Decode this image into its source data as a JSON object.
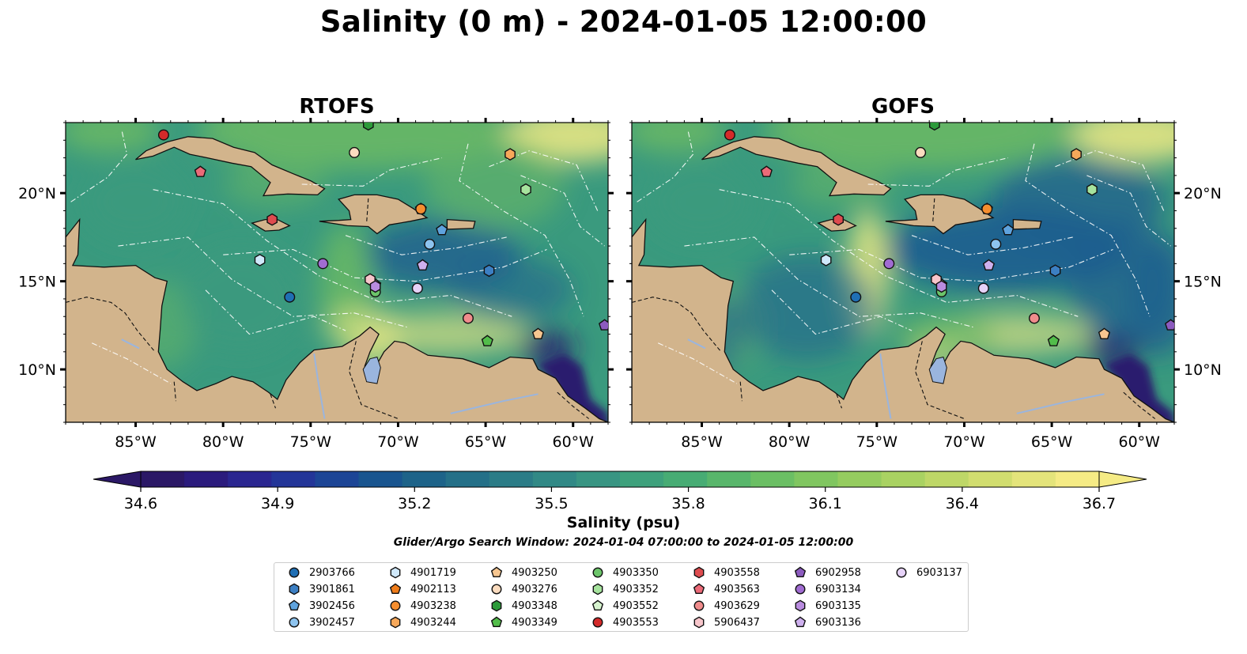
{
  "title": "Salinity (0 m) - 2024-01-05 12:00:00",
  "panels": [
    {
      "key": "rtofs",
      "title": "RTOFS"
    },
    {
      "key": "gofs",
      "title": "GOFS"
    }
  ],
  "map": {
    "lon_range": [
      -89,
      -58
    ],
    "lat_range": [
      7,
      24
    ],
    "lon_ticks": [
      {
        "v": -85,
        "label": "85°W"
      },
      {
        "v": -80,
        "label": "80°W"
      },
      {
        "v": -75,
        "label": "75°W"
      },
      {
        "v": -70,
        "label": "70°W"
      },
      {
        "v": -65,
        "label": "65°W"
      },
      {
        "v": -60,
        "label": "60°W"
      }
    ],
    "lat_ticks": [
      {
        "v": 20,
        "label": "20°N"
      },
      {
        "v": 15,
        "label": "15°N"
      },
      {
        "v": 10,
        "label": "10°N"
      }
    ],
    "land_color": "#d2b48c",
    "colors": {
      "deep": "#2a1b6e",
      "low": "#1f5f8f",
      "mid": "#3a9a7e",
      "high": "#6ab865",
      "top": "#dfe383"
    }
  },
  "colorbar": {
    "label": "Salinity (psu)",
    "min": 34.6,
    "max": 36.7,
    "step": 0.1,
    "ticks": [
      "34.6",
      "34.9",
      "35.2",
      "35.5",
      "35.8",
      "36.1",
      "36.4",
      "36.7"
    ],
    "extend": "both",
    "colormap": [
      "#2b1866",
      "#2b1b7d",
      "#2a2690",
      "#233598",
      "#1c4596",
      "#19558f",
      "#1d6389",
      "#247088",
      "#2b7c87",
      "#318986",
      "#389583",
      "#3ea17c",
      "#47ac74",
      "#58b66b",
      "#6bbf64",
      "#80c660",
      "#95cc5f",
      "#a9d262",
      "#bed767",
      "#d1dd6f",
      "#e4e47b",
      "#f5eb85"
    ]
  },
  "search_window": "Glider/Argo Search Window: 2024-01-04 07:00:00 to 2024-01-05 12:00:00",
  "legend": [
    {
      "label": "2903766",
      "marker": "circle",
      "color": "#1f6fb4",
      "lon": -76.2,
      "lat": 14.1
    },
    {
      "label": "3901861",
      "marker": "hexagon",
      "color": "#3c7fc3",
      "lon": -64.8,
      "lat": 15.6
    },
    {
      "label": "3902456",
      "marker": "pentagon",
      "color": "#5fa3de",
      "lon": -67.5,
      "lat": 17.9
    },
    {
      "label": "3902457",
      "marker": "circle",
      "color": "#8ec4ef",
      "lon": -68.2,
      "lat": 17.1
    },
    {
      "label": "4901719",
      "marker": "hexagon",
      "color": "#cfe8fa",
      "lon": -77.9,
      "lat": 16.2
    },
    {
      "label": "4902113",
      "marker": "pentagon",
      "color": "#f07d1a",
      "lon": -68.7,
      "lat": 19.1
    },
    {
      "label": "4903238",
      "marker": "circle",
      "color": "#f58e2f",
      "lon": -68.7,
      "lat": 19.1
    },
    {
      "label": "4903244",
      "marker": "hexagon",
      "color": "#f7a85a",
      "lon": -63.6,
      "lat": 22.2
    },
    {
      "label": "4903250",
      "marker": "pentagon",
      "color": "#f7c690",
      "lon": -62.0,
      "lat": 12.0
    },
    {
      "label": "4903276",
      "marker": "circle",
      "color": "#fbdcbf",
      "lon": -72.5,
      "lat": 22.3
    },
    {
      "label": "4903348",
      "marker": "hexagon",
      "color": "#2c9a3a",
      "lon": -71.7,
      "lat": 23.9
    },
    {
      "label": "4903349",
      "marker": "pentagon",
      "color": "#52bd4a",
      "lon": -64.9,
      "lat": 11.6
    },
    {
      "label": "4903350",
      "marker": "circle",
      "color": "#6cc56a",
      "lon": -71.3,
      "lat": 14.4
    },
    {
      "label": "4903352",
      "marker": "hexagon",
      "color": "#a6e39d",
      "lon": -62.7,
      "lat": 20.2
    },
    {
      "label": "4903552",
      "marker": "pentagon",
      "color": "#d7f4cf",
      "lon": -71.3,
      "lat": 14.8
    },
    {
      "label": "4903553",
      "marker": "circle",
      "color": "#d42a2a",
      "lon": -83.4,
      "lat": 23.3
    },
    {
      "label": "4903558",
      "marker": "hexagon",
      "color": "#de4c4f",
      "lon": -77.2,
      "lat": 18.5
    },
    {
      "label": "4903563",
      "marker": "pentagon",
      "color": "#ec6a78",
      "lon": -81.3,
      "lat": 21.2
    },
    {
      "label": "4903629",
      "marker": "circle",
      "color": "#f08c8c",
      "lon": -66.0,
      "lat": 12.9
    },
    {
      "label": "5906437",
      "marker": "hexagon",
      "color": "#f7c6cb",
      "lon": -71.6,
      "lat": 15.1
    },
    {
      "label": "6902958",
      "marker": "pentagon",
      "color": "#8c5bbf",
      "lon": -58.2,
      "lat": 12.5
    },
    {
      "label": "6903134",
      "marker": "circle",
      "color": "#a16cd2",
      "lon": -74.3,
      "lat": 16.0
    },
    {
      "label": "6903135",
      "marker": "hexagon",
      "color": "#b98cdf",
      "lon": -71.3,
      "lat": 14.7
    },
    {
      "label": "6903136",
      "marker": "pentagon",
      "color": "#ceb0ee",
      "lon": -68.6,
      "lat": 15.9
    },
    {
      "label": "6903137",
      "marker": "circle",
      "color": "#e6d2f8",
      "lon": -68.9,
      "lat": 14.6
    }
  ]
}
